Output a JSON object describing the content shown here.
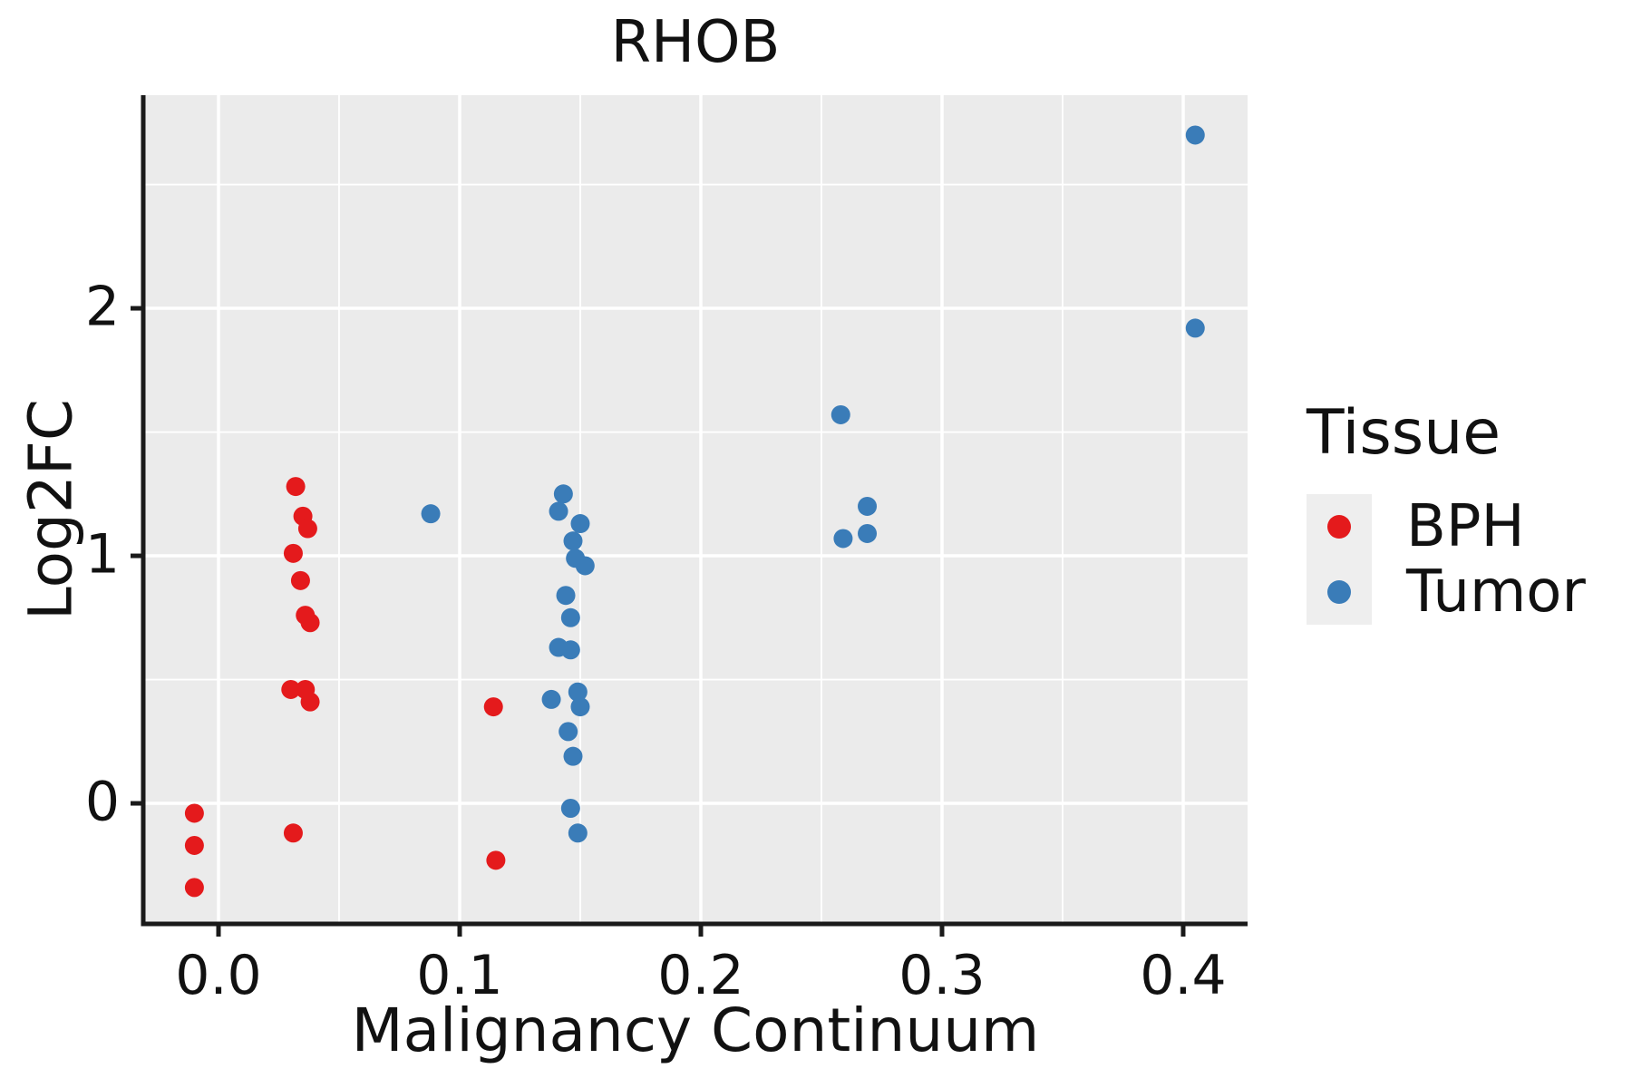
{
  "title": "RHOB",
  "axes": {
    "x_label": "Malignancy Continuum",
    "y_label": "Log2FC"
  },
  "legend": {
    "title": "Tissue",
    "items": [
      {
        "label": "BPH",
        "color": "#e41a1c"
      },
      {
        "label": "Tumor",
        "color": "#3a7cb8"
      }
    ]
  },
  "colors": {
    "panel_background": "#ebebeb",
    "gridline": "#ffffff",
    "axis_line": "#1a1a1a",
    "text": "#111111",
    "legend_key_background": "#eeeeee"
  },
  "chart_data": {
    "type": "scatter",
    "title": "RHOB",
    "xlabel": "Malignancy Continuum",
    "ylabel": "Log2FC",
    "xlim": [
      -0.0312,
      0.4267
    ],
    "ylim": [
      -0.487,
      2.861
    ],
    "grid": true,
    "legend_position": "right",
    "x_ticks": {
      "values": [
        0.0,
        0.1,
        0.2,
        0.3,
        0.4
      ],
      "labels": [
        "0.0",
        "0.1",
        "0.2",
        "0.3",
        "0.4"
      ]
    },
    "y_ticks": {
      "values": [
        0,
        1,
        2
      ],
      "labels": [
        "0",
        "1",
        "2"
      ]
    },
    "x_minor_ticks": [
      0.05,
      0.15,
      0.25,
      0.35
    ],
    "y_minor_ticks": [
      0.5,
      1.5,
      2.5
    ],
    "series": [
      {
        "name": "BPH",
        "color": "#e41a1c",
        "points": [
          [
            -0.01,
            -0.04
          ],
          [
            -0.01,
            -0.17
          ],
          [
            -0.01,
            -0.34
          ],
          [
            0.032,
            1.28
          ],
          [
            0.035,
            1.16
          ],
          [
            0.037,
            1.11
          ],
          [
            0.031,
            1.01
          ],
          [
            0.034,
            0.9
          ],
          [
            0.036,
            0.76
          ],
          [
            0.038,
            0.73
          ],
          [
            0.03,
            0.46
          ],
          [
            0.036,
            0.46
          ],
          [
            0.038,
            0.41
          ],
          [
            0.031,
            -0.12
          ],
          [
            0.114,
            0.39
          ],
          [
            0.115,
            -0.23
          ]
        ]
      },
      {
        "name": "Tumor",
        "color": "#3a7cb8",
        "points": [
          [
            0.088,
            1.17
          ],
          [
            0.143,
            1.25
          ],
          [
            0.141,
            1.18
          ],
          [
            0.15,
            1.13
          ],
          [
            0.147,
            1.06
          ],
          [
            0.148,
            0.99
          ],
          [
            0.152,
            0.96
          ],
          [
            0.144,
            0.84
          ],
          [
            0.146,
            0.75
          ],
          [
            0.141,
            0.63
          ],
          [
            0.146,
            0.62
          ],
          [
            0.149,
            0.45
          ],
          [
            0.138,
            0.42
          ],
          [
            0.15,
            0.39
          ],
          [
            0.145,
            0.29
          ],
          [
            0.147,
            0.19
          ],
          [
            0.146,
            -0.02
          ],
          [
            0.149,
            -0.12
          ],
          [
            0.258,
            1.57
          ],
          [
            0.269,
            1.2
          ],
          [
            0.259,
            1.07
          ],
          [
            0.269,
            1.09
          ],
          [
            0.405,
            2.7
          ],
          [
            0.405,
            1.92
          ]
        ]
      }
    ]
  }
}
